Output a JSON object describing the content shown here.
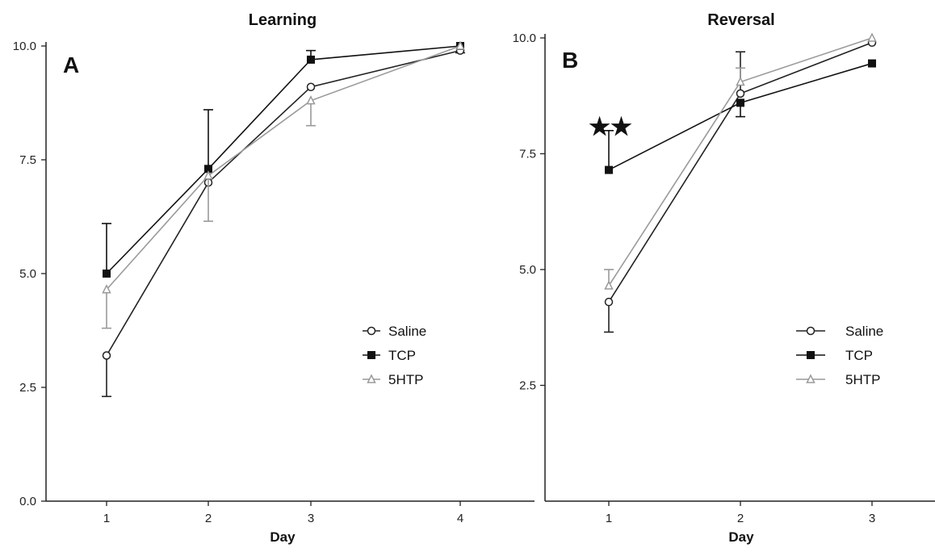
{
  "colors": {
    "saline": "#222222",
    "tcp": "#111111",
    "5htp": "#9a9a9a"
  },
  "chart_data": [
    {
      "type": "line",
      "panel": "A",
      "title": "Learning",
      "xlabel": "Day",
      "ylabel": "",
      "x": [
        1,
        2,
        3,
        4
      ],
      "x_ticks": [
        "1",
        "2",
        "3",
        "4"
      ],
      "ylim": [
        0,
        10
      ],
      "y_ticks": [
        "0.0",
        "2.5",
        "5.0",
        "7.5",
        "10.0"
      ],
      "grid": false,
      "legend": "right",
      "series": [
        {
          "name": "Saline",
          "marker": "open-circle",
          "color": "#222222",
          "values": [
            3.2,
            7.0,
            9.1,
            9.9
          ],
          "err_lo": [
            0.9,
            0.0,
            0.0,
            0.05
          ],
          "err_hi": [
            0.0,
            0.0,
            0.0,
            0.0
          ]
        },
        {
          "name": "TCP",
          "marker": "filled-square",
          "color": "#111111",
          "values": [
            5.0,
            7.3,
            9.7,
            10.0
          ],
          "err_lo": [
            0.0,
            0.0,
            0.0,
            0.0
          ],
          "err_hi": [
            1.1,
            1.3,
            0.2,
            0.0
          ]
        },
        {
          "name": "5HTP",
          "marker": "open-triangle",
          "color": "#9a9a9a",
          "values": [
            4.65,
            7.15,
            8.8,
            10.0
          ],
          "err_lo": [
            0.85,
            1.0,
            0.55,
            0.0
          ],
          "err_hi": [
            0.0,
            0.0,
            0.0,
            0.0
          ]
        }
      ]
    },
    {
      "type": "line",
      "panel": "B",
      "title": "Reversal",
      "xlabel": "Day",
      "ylabel": "",
      "x": [
        1,
        2,
        3
      ],
      "x_ticks": [
        "1",
        "2",
        "3"
      ],
      "ylim": [
        0,
        10
      ],
      "y_ticks": [
        "2.5",
        "5.0",
        "7.5",
        "10.0"
      ],
      "grid": false,
      "legend": "right",
      "annotation": "★★",
      "series": [
        {
          "name": "Saline",
          "marker": "open-circle",
          "color": "#222222",
          "values": [
            4.3,
            8.8,
            9.9
          ],
          "err_lo": [
            0.65,
            0.0,
            0.0
          ],
          "err_hi": [
            0.0,
            0.9,
            0.0
          ]
        },
        {
          "name": "TCP",
          "marker": "filled-square",
          "color": "#111111",
          "values": [
            7.15,
            8.6,
            9.45
          ],
          "err_lo": [
            0.0,
            0.3,
            0.0
          ],
          "err_hi": [
            0.85,
            0.0,
            0.0
          ]
        },
        {
          "name": "5HTP",
          "marker": "open-triangle",
          "color": "#9a9a9a",
          "values": [
            4.65,
            9.05,
            10.0
          ],
          "err_lo": [
            0.0,
            0.0,
            0.0
          ],
          "err_hi": [
            0.35,
            0.3,
            0.0
          ]
        }
      ]
    }
  ]
}
